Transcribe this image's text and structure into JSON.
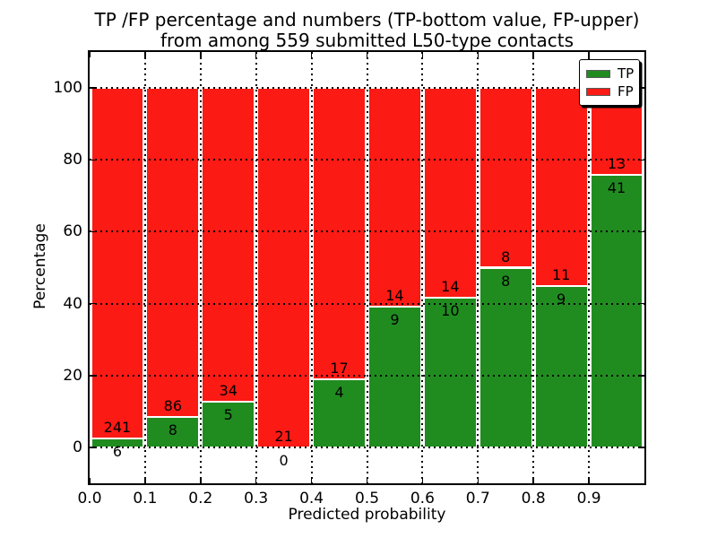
{
  "title": {
    "line1": "TP /FP percentage and numbers (TP-bottom value, FP-upper)",
    "line2": "from among 559 submitted L50-type contacts"
  },
  "axes": {
    "xlabel": "Predicted probability",
    "ylabel": "Percentage",
    "x_tick_labels": [
      "0.0",
      "0.1",
      "0.2",
      "0.3",
      "0.4",
      "0.5",
      "0.6",
      "0.7",
      "0.8",
      "0.9"
    ],
    "x_tick_values": [
      0.0,
      0.1,
      0.2,
      0.3,
      0.4,
      0.5,
      0.6,
      0.7,
      0.8,
      0.9
    ],
    "y_tick_labels": [
      "0",
      "20",
      "40",
      "60",
      "80",
      "100"
    ],
    "y_tick_values": [
      0,
      20,
      40,
      60,
      80,
      100
    ]
  },
  "legend": {
    "entries": [
      {
        "label": "TP",
        "color": "#208c20"
      },
      {
        "label": "FP",
        "color": "#fc1a15"
      }
    ]
  },
  "colors": {
    "tp": "#208c20",
    "fp": "#fc1a15",
    "grid": "#000000",
    "background": "#ffffff"
  },
  "chart_data": {
    "type": "bar",
    "stacked": true,
    "normalization": "each bin scaled to 100 percent (TP bottom, FP top)",
    "title": "TP /FP percentage and numbers (TP-bottom value, FP-upper) from among 559 submitted L50-type contacts",
    "xlabel": "Predicted probability",
    "ylabel": "Percentage",
    "x_bin_edges": [
      0.0,
      0.1,
      0.2,
      0.3,
      0.4,
      0.5,
      0.6,
      0.7,
      0.8,
      0.9,
      1.0
    ],
    "categories": [
      "0.0-0.1",
      "0.1-0.2",
      "0.2-0.3",
      "0.3-0.4",
      "0.4-0.5",
      "0.5-0.6",
      "0.6-0.7",
      "0.7-0.8",
      "0.8-0.9",
      "0.9-1.0"
    ],
    "series": [
      {
        "name": "TP",
        "color": "#208c20",
        "counts": [
          6,
          8,
          5,
          0,
          4,
          9,
          10,
          8,
          9,
          41
        ]
      },
      {
        "name": "FP",
        "color": "#fc1a15",
        "counts": [
          241,
          86,
          34,
          21,
          17,
          14,
          14,
          8,
          11,
          13
        ]
      }
    ],
    "total_contacts": 559,
    "xlim": [
      0.0,
      1.0
    ],
    "ylim": [
      -10,
      110
    ],
    "grid": "dotted black, on top of bars",
    "legend_position": "upper right"
  }
}
